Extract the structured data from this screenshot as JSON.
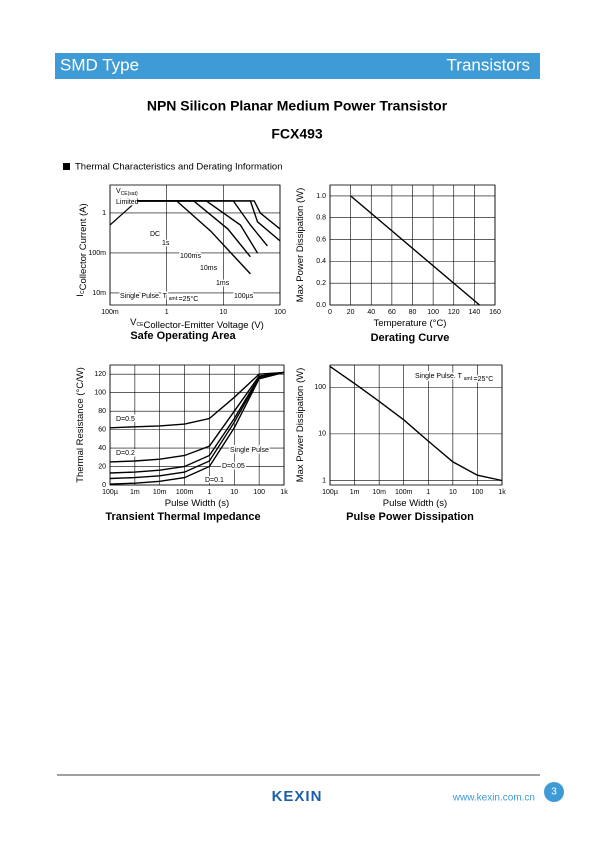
{
  "header": {
    "left": "SMD Type",
    "right": "Transistors"
  },
  "title": "NPN Silicon Planar Medium Power Transistor",
  "part_number": "FCX493",
  "section": "Thermal Characteristics and Derating Information",
  "chart_data": [
    {
      "type": "line",
      "title": "Safe Operating Area",
      "xscale": "log",
      "yscale": "log",
      "xlabel": {
        "symbol": "V",
        "subscript": "CE",
        "text": "Collector-Emitter Voltage (V)"
      },
      "ylabel": {
        "symbol": "I",
        "subscript": "C",
        "text": "Collector Current (A)"
      },
      "xlim": [
        0.1,
        100
      ],
      "ylim": [
        0.005,
        5
      ],
      "xticks": [
        {
          "value": 0.1,
          "label": "100m"
        },
        1,
        10,
        100
      ],
      "yticks": [
        {
          "value": 0.01,
          "label": "10m"
        },
        {
          "value": 0.1,
          "label": "100m"
        },
        1
      ],
      "grid": true,
      "limit_line": {
        "label": {
          "symbol": "V",
          "subscript": "CE(sat)",
          "text": "Limited"
        },
        "x": [
          0.1,
          0.3
        ],
        "values": [
          0.5,
          2
        ]
      },
      "note": {
        "text": "Single Pulse. T",
        "subscript": "amb",
        "suffix": "=25°C"
      },
      "series": [
        {
          "name": "DC",
          "color": "#000000",
          "x": [
            0.3,
            1.5,
            6,
            30
          ],
          "values": [
            2,
            2,
            0.35,
            0.03
          ]
        },
        {
          "name": "1s",
          "color": "#000000",
          "x": [
            0.3,
            3,
            12,
            30
          ],
          "values": [
            2,
            2,
            0.4,
            0.08
          ]
        },
        {
          "name": "100ms",
          "color": "#000000",
          "x": [
            0.3,
            5,
            20,
            40
          ],
          "values": [
            2,
            2,
            0.5,
            0.1
          ]
        },
        {
          "name": "10ms",
          "color": "#000000",
          "x": [
            0.3,
            15,
            30,
            60
          ],
          "values": [
            2,
            2,
            0.5,
            0.15
          ]
        },
        {
          "name": "1ms",
          "color": "#000000",
          "x": [
            0.3,
            30,
            40,
            100
          ],
          "values": [
            2,
            2,
            0.6,
            0.2
          ]
        },
        {
          "name": "100µs",
          "color": "#000000",
          "x": [
            0.3,
            35,
            45,
            100
          ],
          "values": [
            2,
            2,
            1,
            0.4
          ]
        }
      ]
    },
    {
      "type": "line",
      "title": "Derating Curve",
      "xlabel": {
        "text": "Temperature (°C)"
      },
      "ylabel": {
        "text": "Max Power Dissipation (W)"
      },
      "xlim": [
        0,
        160
      ],
      "ylim": [
        0,
        1.1
      ],
      "xticks": [
        0,
        20,
        40,
        60,
        80,
        100,
        120,
        140,
        160
      ],
      "yticks": [
        {
          "value": 0,
          "label": "0.0"
        },
        0.2,
        0.4,
        0.6,
        0.8,
        {
          "value": 1,
          "label": "1.0"
        }
      ],
      "grid": true,
      "series": [
        {
          "color": "#000000",
          "x": [
            20,
            145
          ],
          "values": [
            1,
            0
          ]
        }
      ]
    },
    {
      "type": "line",
      "title": "Transient Thermal Impedance",
      "xscale": "log",
      "xlabel": {
        "text": "Pulse Width (s)"
      },
      "ylabel": {
        "text": "Thermal Resistance (°C/W)"
      },
      "xlim": [
        0.0001,
        1000
      ],
      "ylim": [
        0,
        130
      ],
      "xticks": [
        {
          "value": 0.0001,
          "label": "100µ"
        },
        {
          "value": 0.001,
          "label": "1m"
        },
        {
          "value": 0.01,
          "label": "10m"
        },
        {
          "value": 0.1,
          "label": "100m"
        },
        1,
        10,
        100,
        {
          "value": 1000,
          "label": "1k"
        }
      ],
      "yticks": [
        0,
        20,
        40,
        60,
        80,
        100,
        120
      ],
      "grid": true,
      "x": [
        0.0001,
        0.001,
        0.01,
        0.1,
        1,
        10,
        100,
        1000
      ],
      "series": [
        {
          "name": "D=0.5",
          "color": "#000000",
          "values": [
            62,
            63,
            64,
            66,
            72,
            95,
            120,
            122
          ]
        },
        {
          "name": "D=0.2",
          "color": "#000000",
          "values": [
            25,
            26,
            28,
            32,
            42,
            80,
            118,
            122
          ]
        },
        {
          "name": "D=0.1",
          "color": "#000000",
          "values": [
            13,
            14,
            16,
            20,
            32,
            72,
            117,
            122
          ]
        },
        {
          "name": "D=0.05",
          "color": "#000000",
          "values": [
            7,
            8,
            10,
            14,
            26,
            68,
            116,
            122
          ]
        },
        {
          "name": "Single Pulse",
          "color": "#000000",
          "values": [
            1,
            2,
            4,
            8,
            20,
            62,
            115,
            122
          ]
        }
      ]
    },
    {
      "type": "line",
      "title": "Pulse Power Dissipation",
      "xscale": "log",
      "yscale": "log",
      "xlabel": {
        "text": "Pulse Width (s)"
      },
      "ylabel": {
        "text": "Max Power Dissipation (W)"
      },
      "xlim": [
        0.0001,
        1000
      ],
      "ylim": [
        0.8,
        300
      ],
      "xticks": [
        {
          "value": 0.0001,
          "label": "100µ"
        },
        {
          "value": 0.001,
          "label": "1m"
        },
        {
          "value": 0.01,
          "label": "10m"
        },
        {
          "value": 0.1,
          "label": "100m"
        },
        1,
        10,
        100,
        {
          "value": 1000,
          "label": "1k"
        }
      ],
      "yticks": [
        1,
        10,
        100
      ],
      "grid": true,
      "note": {
        "text": "Single Pulse. T",
        "subscript": "amb",
        "suffix": "=25°C"
      },
      "x": [
        0.0001,
        0.001,
        0.01,
        0.1,
        1,
        10,
        100,
        1000
      ],
      "series": [
        {
          "color": "#000000",
          "values": [
            280,
            120,
            50,
            20,
            7,
            2.5,
            1.3,
            1
          ]
        }
      ]
    }
  ],
  "footer": {
    "logo": "KEXIN",
    "url": "www.kexin.com.cn",
    "page": "3"
  }
}
